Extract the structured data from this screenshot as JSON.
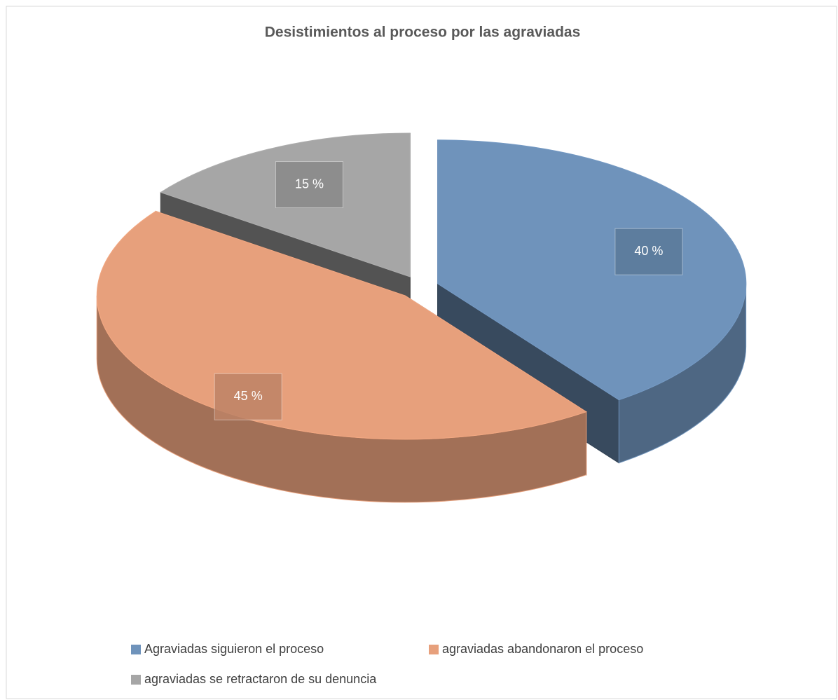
{
  "chart_data": {
    "type": "pie",
    "title": "Desistimientos al proceso por las agraviadas",
    "categories": [
      "Agraviadas siguieron el proceso",
      "agraviadas abandonaron el proceso",
      "agraviadas se retractaron de su denuncia"
    ],
    "values": [
      40,
      45,
      15
    ],
    "value_labels": [
      "40 %",
      "45 %",
      "15 %"
    ],
    "colors": [
      "#6f93bb",
      "#e7a07c",
      "#a6a6a6"
    ]
  }
}
